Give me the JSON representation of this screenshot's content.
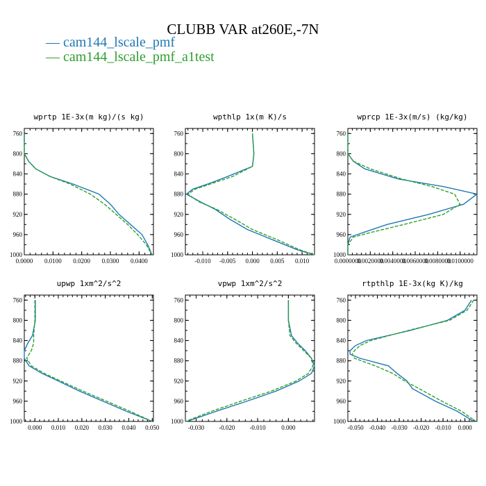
{
  "title": "CLUBB VAR at260E,-7N",
  "legend": [
    {
      "label": "cam144_lscale_pmf",
      "color": "#1f77b4",
      "dash": "solid"
    },
    {
      "label": "cam144_lscale_pmf_a1test",
      "color": "#2ca02c",
      "dash": "dashed"
    }
  ],
  "chart_data": [
    {
      "type": "line",
      "title": "wprtp  1E-3x(m kg)/(s kg)",
      "xlim": [
        0,
        0.045
      ],
      "ylim": [
        1000,
        750
      ],
      "yticks": [
        760,
        800,
        840,
        880,
        920,
        960,
        1000
      ],
      "xticks": [
        0,
        0.01,
        0.02,
        0.03,
        0.04
      ],
      "xtick_labels": [
        "0.0000",
        "0.0100",
        "0.0200",
        "0.0300",
        "0.0400"
      ],
      "series": [
        {
          "y": [
            760,
            800,
            815,
            830,
            845,
            860,
            880,
            900,
            920,
            940,
            960,
            980,
            1000
          ],
          "x": [
            0.0,
            0.0,
            0.0015,
            0.004,
            0.009,
            0.017,
            0.026,
            0.03,
            0.033,
            0.037,
            0.041,
            0.043,
            0.0445
          ]
        },
        {
          "y": [
            760,
            800,
            815,
            830,
            845,
            860,
            880,
            900,
            920,
            940,
            960,
            980,
            1000
          ],
          "x": [
            0.0,
            0.0,
            0.0015,
            0.004,
            0.009,
            0.016,
            0.023,
            0.028,
            0.032,
            0.036,
            0.0395,
            0.0425,
            0.0445
          ]
        }
      ]
    },
    {
      "type": "line",
      "title": "wpthlp  1x(m K)/s",
      "xlim": [
        -0.0135,
        0.0125
      ],
      "ylim": [
        1000,
        750
      ],
      "yticks": [
        760,
        800,
        840,
        880,
        920,
        960,
        1000
      ],
      "xticks": [
        -0.01,
        -0.005,
        0,
        0.005,
        0.01
      ],
      "xtick_labels": [
        "-0.010",
        "-0.005",
        "0.000",
        "0.005",
        "0.010"
      ],
      "series": [
        {
          "y": [
            760,
            800,
            825,
            845,
            860,
            870,
            880,
            895,
            910,
            930,
            950,
            970,
            990,
            1000
          ],
          "x": [
            0.0,
            0.0003,
            0.0,
            -0.005,
            -0.009,
            -0.012,
            -0.0133,
            -0.0105,
            -0.0075,
            -0.0045,
            -0.001,
            0.004,
            0.009,
            0.0125
          ]
        },
        {
          "y": [
            760,
            800,
            825,
            845,
            860,
            870,
            880,
            895,
            910,
            930,
            950,
            970,
            990,
            1000
          ],
          "x": [
            0.0,
            0.0003,
            0.0,
            -0.004,
            -0.0085,
            -0.0115,
            -0.013,
            -0.0108,
            -0.0072,
            -0.0035,
            0.0,
            0.005,
            0.0095,
            0.0125
          ]
        }
      ]
    },
    {
      "type": "line",
      "title": "wprcp  1E-3x(m/s) (kg/kg)",
      "xlim": [
        0,
        0.0115
      ],
      "ylim": [
        1000,
        750
      ],
      "yticks": [
        760,
        800,
        840,
        880,
        920,
        960,
        1000
      ],
      "xticks": [
        0,
        0.002,
        0.004,
        0.006,
        0.008,
        0.01
      ],
      "xtick_labels": [
        "0.0000000",
        "0.0020000",
        "0.0040000",
        "0.0060000",
        "0.0080000",
        "0.0100000"
      ],
      "series": [
        {
          "y": [
            760,
            800,
            815,
            830,
            850,
            865,
            880,
            900,
            920,
            940,
            955,
            965,
            980,
            1000
          ],
          "x": [
            0.0,
            0.0,
            0.0005,
            0.0015,
            0.0045,
            0.0085,
            0.0115,
            0.0103,
            0.0072,
            0.0035,
            0.0015,
            0.0002,
            0.0,
            0.0
          ]
        },
        {
          "y": [
            760,
            800,
            815,
            830,
            850,
            865,
            880,
            900,
            920,
            940,
            955,
            965,
            980,
            1000
          ],
          "x": [
            0.0,
            0.0,
            0.0005,
            0.002,
            0.0048,
            0.0075,
            0.0095,
            0.01,
            0.0085,
            0.005,
            0.0022,
            0.0005,
            0.0,
            0.0
          ]
        }
      ]
    },
    {
      "type": "line",
      "title": "upwp  1xm^2/s^2",
      "xlim": [
        -0.0045,
        0.0505
      ],
      "ylim": [
        1000,
        750
      ],
      "yticks": [
        760,
        800,
        840,
        880,
        920,
        960,
        1000
      ],
      "xticks": [
        0,
        0.01,
        0.02,
        0.03,
        0.04,
        0.05
      ],
      "xtick_labels": [
        "0.000",
        "0.010",
        "0.020",
        "0.030",
        "0.040",
        "0.050"
      ],
      "series": [
        {
          "y": [
            760,
            800,
            830,
            845,
            860,
            875,
            890,
            905,
            920,
            940,
            960,
            980,
            1000
          ],
          "x": [
            0.0002,
            0.0002,
            -0.001,
            -0.003,
            -0.0045,
            -0.0045,
            -0.0025,
            0.003,
            0.01,
            0.019,
            0.029,
            0.039,
            0.05
          ]
        },
        {
          "y": [
            760,
            800,
            830,
            845,
            860,
            875,
            890,
            905,
            920,
            940,
            960,
            980,
            1000
          ],
          "x": [
            0.0,
            0.0,
            -0.0005,
            -0.0005,
            -0.0015,
            -0.0035,
            -0.0015,
            0.004,
            0.011,
            0.0205,
            0.0305,
            0.0405,
            0.05
          ]
        }
      ]
    },
    {
      "type": "line",
      "title": "vpwp  1xm^2/s^2",
      "xlim": [
        -0.0335,
        0.0085
      ],
      "ylim": [
        1000,
        750
      ],
      "yticks": [
        760,
        800,
        840,
        880,
        920,
        960,
        1000
      ],
      "xticks": [
        -0.03,
        -0.02,
        -0.01,
        0
      ],
      "xtick_labels": [
        "-0.030",
        "-0.020",
        "-0.010",
        "0.000"
      ],
      "series": [
        {
          "y": [
            760,
            800,
            830,
            845,
            860,
            875,
            890,
            905,
            920,
            940,
            960,
            980,
            1000
          ],
          "x": [
            0.0,
            0.0,
            0.001,
            0.003,
            0.0055,
            0.0075,
            0.0085,
            0.0075,
            0.0035,
            -0.004,
            -0.0135,
            -0.0235,
            -0.033
          ]
        },
        {
          "y": [
            760,
            800,
            830,
            845,
            860,
            875,
            890,
            905,
            920,
            940,
            960,
            980,
            1000
          ],
          "x": [
            0.0,
            0.0,
            0.0005,
            0.0025,
            0.005,
            0.0075,
            0.008,
            0.0065,
            0.0025,
            -0.0055,
            -0.0155,
            -0.025,
            -0.0335
          ]
        }
      ]
    },
    {
      "type": "line",
      "title": "rtpthlp  1E-3x(kg K)/kg",
      "xlim": [
        -0.0535,
        0.0055
      ],
      "ylim": [
        1000,
        750
      ],
      "yticks": [
        760,
        800,
        840,
        880,
        920,
        960,
        1000
      ],
      "xticks": [
        -0.05,
        -0.04,
        -0.03,
        -0.02,
        -0.01,
        0
      ],
      "xtick_labels": [
        "-0.050",
        "-0.040",
        "-0.030",
        "-0.020",
        "-0.010",
        "0.000"
      ],
      "series": [
        {
          "y": [
            760,
            780,
            800,
            820,
            840,
            850,
            860,
            867,
            875,
            890,
            905,
            920,
            935,
            960,
            980,
            1000
          ],
          "x": [
            0.003,
            0.0,
            -0.008,
            -0.025,
            -0.045,
            -0.05,
            -0.0525,
            -0.0525,
            -0.048,
            -0.035,
            -0.031,
            -0.0265,
            -0.024,
            -0.0135,
            -0.0035,
            0.004
          ]
        },
        {
          "y": [
            760,
            780,
            800,
            820,
            840,
            850,
            860,
            867,
            875,
            890,
            905,
            920,
            935,
            960,
            980,
            1000
          ],
          "x": [
            0.004,
            0.001,
            -0.007,
            -0.026,
            -0.043,
            -0.048,
            -0.0505,
            -0.0515,
            -0.0505,
            -0.041,
            -0.033,
            -0.0275,
            -0.021,
            -0.0105,
            -0.0015,
            0.005
          ]
        }
      ]
    }
  ]
}
